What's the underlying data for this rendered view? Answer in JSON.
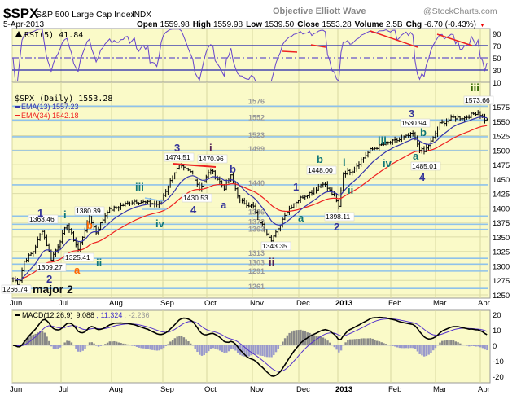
{
  "header": {
    "symbol": "$SPX",
    "name": "S&P 500 Large Cap Index",
    "exchange": "INDX",
    "watermark": "Objective Elliott Wave",
    "source": "@StockCharts.com",
    "date": "5-Apr-2013",
    "open_label": "Open",
    "open": "1559.98",
    "high_label": "High",
    "high": "1559.98",
    "low_label": "Low",
    "low": "1539.50",
    "close_label": "Close",
    "close": "1553.28",
    "volume_label": "Volume",
    "volume": "2.5B",
    "chg_label": "Chg",
    "chg": "-6.70 (-0.43%)",
    "chg_arrow": "▼"
  },
  "colors": {
    "panel_bg": "#fafac8",
    "level_line": "#8fc2ea",
    "ema13": "#3333aa",
    "ema34": "#ee2222",
    "wave_blue": "#333399",
    "wave_teal": "#117777",
    "wave_orange": "#ff6600",
    "wave_purple": "#552255",
    "wave_green": "#336600"
  },
  "chart_data": [
    {
      "type": "line",
      "title": "RSI(5) 41.84",
      "ylim": [
        0,
        100
      ],
      "yticks": [
        "90",
        "70",
        "50",
        "30",
        "10"
      ],
      "reference_lines": [
        70,
        50,
        30
      ],
      "last_value": 41.84
    },
    {
      "type": "candlestick-ohlc",
      "title": "$SPX (Daily) 1553.28",
      "legend": [
        "EMA(13) 1557.23",
        "EMA(34) 1542.18"
      ],
      "ylim": [
        1240,
        1590
      ],
      "yticks": [
        "1575",
        "1550",
        "1525",
        "1500",
        "1475",
        "1450",
        "1425",
        "1400",
        "1375",
        "1350",
        "1325",
        "1300",
        "1275",
        "1250"
      ],
      "xticks": [
        "Jun",
        "Jul",
        "Aug",
        "Sep",
        "Oct",
        "Nov",
        "Dec",
        "2013",
        "Feb",
        "Mar",
        "Apr"
      ],
      "close_keypoints_day_price": [
        [
          0,
          1278
        ],
        [
          2.5,
          1268
        ],
        [
          5,
          1308
        ],
        [
          9,
          1325
        ],
        [
          13,
          1362
        ],
        [
          17,
          1312
        ],
        [
          20,
          1335
        ],
        [
          24,
          1372
        ],
        [
          29,
          1328
        ],
        [
          34,
          1385
        ],
        [
          37,
          1358
        ],
        [
          42,
          1395
        ],
        [
          49,
          1405
        ],
        [
          54,
          1412
        ],
        [
          65,
          1406
        ],
        [
          72,
          1462
        ],
        [
          74,
          1472
        ],
        [
          80,
          1460
        ],
        [
          83,
          1433
        ],
        [
          88,
          1466
        ],
        [
          94,
          1435
        ],
        [
          97,
          1455
        ],
        [
          101,
          1412
        ],
        [
          107,
          1402
        ],
        [
          109,
          1382
        ],
        [
          115,
          1346
        ],
        [
          118,
          1362
        ],
        [
          121,
          1390
        ],
        [
          125,
          1408
        ],
        [
          129,
          1420
        ],
        [
          134,
          1430
        ],
        [
          138,
          1444
        ],
        [
          143,
          1420
        ],
        [
          145,
          1402
        ],
        [
          147,
          1460
        ],
        [
          151,
          1465
        ],
        [
          159,
          1500
        ],
        [
          165,
          1510
        ],
        [
          172,
          1518
        ],
        [
          178,
          1528
        ],
        [
          181,
          1502
        ],
        [
          183,
          1497
        ],
        [
          187,
          1520
        ],
        [
          190,
          1545
        ],
        [
          196,
          1556
        ],
        [
          201,
          1556
        ],
        [
          207,
          1566
        ],
        [
          210,
          1553
        ]
      ],
      "levels": [
        "1576",
        "1552",
        "1523",
        "1499",
        "1440",
        "1386",
        "1372",
        "1363",
        "1313",
        "1303",
        "1291",
        "1261"
      ],
      "price_labels": [
        "1266.74",
        "1363.46",
        "1309.27",
        "1325.41",
        "1380.39",
        "1474.51",
        "1470.96",
        "1430.53",
        "1343.35",
        "1448.00",
        "1398.11",
        "1530.94",
        "1485.01",
        "1573.66"
      ],
      "wave_labels": [
        {
          "text": "1",
          "color": "#333399"
        },
        {
          "text": "2",
          "color": "#333399"
        },
        {
          "text": "a",
          "color": "#ff6600"
        },
        {
          "text": "i",
          "color": "#117777"
        },
        {
          "text": "b",
          "color": "#ff6600"
        },
        {
          "text": "ii",
          "color": "#117777"
        },
        {
          "text": "iii",
          "color": "#117777"
        },
        {
          "text": "iv",
          "color": "#117777"
        },
        {
          "text": "3",
          "color": "#333399"
        },
        {
          "text": "4",
          "color": "#333399"
        },
        {
          "text": "i",
          "color": "#552255"
        },
        {
          "text": "b",
          "color": "#333399"
        },
        {
          "text": "a",
          "color": "#333399"
        },
        {
          "text": "ii",
          "color": "#552255"
        },
        {
          "text": "1",
          "color": "#333399"
        },
        {
          "text": "a",
          "color": "#117777"
        },
        {
          "text": "b",
          "color": "#117777"
        },
        {
          "text": "2",
          "color": "#333399"
        },
        {
          "text": "i",
          "color": "#117777"
        },
        {
          "text": "ii",
          "color": "#117777"
        },
        {
          "text": "iii",
          "color": "#117777"
        },
        {
          "text": "iv",
          "color": "#117777"
        },
        {
          "text": "3",
          "color": "#333399"
        },
        {
          "text": "b",
          "color": "#117777"
        },
        {
          "text": "a",
          "color": "#117777"
        },
        {
          "text": "4",
          "color": "#333399"
        },
        {
          "text": "iii",
          "color": "#336600"
        },
        {
          "text": "major 2",
          "color": "#111111"
        }
      ]
    },
    {
      "type": "line",
      "title": "MACD(12,26,9)",
      "values_text": [
        "9.088",
        "11.324",
        "-2.236"
      ],
      "ylim": [
        -25,
        22
      ],
      "yticks": [
        "20",
        "10",
        "0",
        "-10",
        "-20"
      ],
      "xticks": [
        "Jun",
        "Jul",
        "Aug",
        "Sep",
        "Oct",
        "Nov",
        "Dec",
        "2013",
        "Feb",
        "Mar",
        "Apr"
      ]
    }
  ]
}
